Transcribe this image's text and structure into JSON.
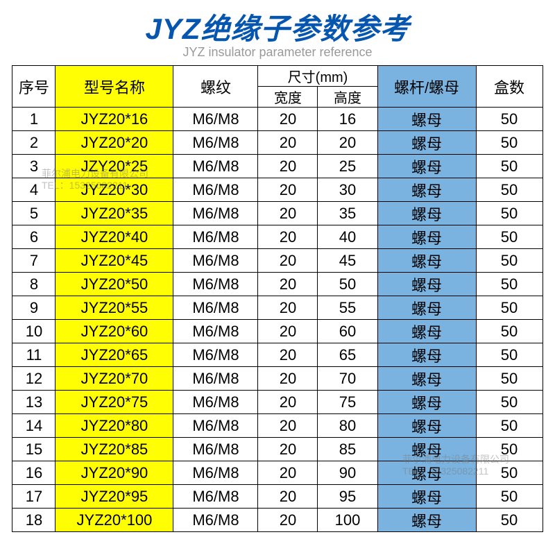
{
  "title": "JYZ绝缘子参数参考",
  "subtitle": "JYZ insulator parameter reference",
  "columns": {
    "seq": "序号",
    "model": "型号名称",
    "thread": "螺纹",
    "dim": "尺寸(mm)",
    "width": "宽度",
    "height": "高度",
    "screw_nut": "螺杆/螺母",
    "box": "盒数"
  },
  "rows": [
    {
      "seq": "1",
      "model": "JYZ20*16",
      "thread": "M6/M8",
      "w": "20",
      "h": "16",
      "sn": "螺母",
      "box": "50"
    },
    {
      "seq": "2",
      "model": "JYZ20*20",
      "thread": "M6/M8",
      "w": "20",
      "h": "20",
      "sn": "螺母",
      "box": "50"
    },
    {
      "seq": "3",
      "model": "JZY20*25",
      "thread": "M6/M8",
      "w": "20",
      "h": "25",
      "sn": "螺母",
      "box": "50"
    },
    {
      "seq": "4",
      "model": "JYZ20*30",
      "thread": "M6/M8",
      "w": "20",
      "h": "30",
      "sn": "螺母",
      "box": "50"
    },
    {
      "seq": "5",
      "model": "JYZ20*35",
      "thread": "M6/M8",
      "w": "20",
      "h": "35",
      "sn": "螺母",
      "box": "50"
    },
    {
      "seq": "6",
      "model": "JYZ20*40",
      "thread": "M6/M8",
      "w": "20",
      "h": "40",
      "sn": "螺母",
      "box": "50"
    },
    {
      "seq": "7",
      "model": "JYZ20*45",
      "thread": "M6/M8",
      "w": "20",
      "h": "45",
      "sn": "螺母",
      "box": "50"
    },
    {
      "seq": "8",
      "model": "JYZ20*50",
      "thread": "M6/M8",
      "w": "20",
      "h": "50",
      "sn": "螺母",
      "box": "50"
    },
    {
      "seq": "9",
      "model": "JYZ20*55",
      "thread": "M6/M8",
      "w": "20",
      "h": "55",
      "sn": "螺母",
      "box": "50"
    },
    {
      "seq": "10",
      "model": "JYZ20*60",
      "thread": "M6/M8",
      "w": "20",
      "h": "60",
      "sn": "螺母",
      "box": "50"
    },
    {
      "seq": "11",
      "model": "JYZ20*65",
      "thread": "M6/M8",
      "w": "20",
      "h": "65",
      "sn": "螺母",
      "box": "50"
    },
    {
      "seq": "12",
      "model": "JYZ20*70",
      "thread": "M6/M8",
      "w": "20",
      "h": "70",
      "sn": "螺母",
      "box": "50"
    },
    {
      "seq": "13",
      "model": "JYZ20*75",
      "thread": "M6/M8",
      "w": "20",
      "h": "75",
      "sn": "螺母",
      "box": "50"
    },
    {
      "seq": "14",
      "model": "JYZ20*80",
      "thread": "M6/M8",
      "w": "20",
      "h": "80",
      "sn": "螺母",
      "box": "50"
    },
    {
      "seq": "15",
      "model": "JYZ20*85",
      "thread": "M6/M8",
      "w": "20",
      "h": "85",
      "sn": "螺母",
      "box": "50"
    },
    {
      "seq": "16",
      "model": "JYZ20*90",
      "thread": "M6/M8",
      "w": "20",
      "h": "90",
      "sn": "螺母",
      "box": "50"
    },
    {
      "seq": "17",
      "model": "JYZ20*95",
      "thread": "M6/M8",
      "w": "20",
      "h": "95",
      "sn": "螺母",
      "box": "50"
    },
    {
      "seq": "18",
      "model": "JYZ20*100",
      "thread": "M6/M8",
      "w": "20",
      "h": "100",
      "sn": "螺母",
      "box": "50"
    }
  ],
  "style": {
    "title_color": "#0656b0",
    "subtitle_color": "#999999",
    "yellow": "#fffe03",
    "blue": "#7ab3e0",
    "border": "#000000",
    "font": "Microsoft YaHei",
    "title_fontsize": 42,
    "subtitle_fontsize": 18,
    "cell_fontsize": 22
  },
  "watermark": {
    "line1": "菲尔浦电力设备有限公司",
    "line2": "TEL：15325082211"
  }
}
